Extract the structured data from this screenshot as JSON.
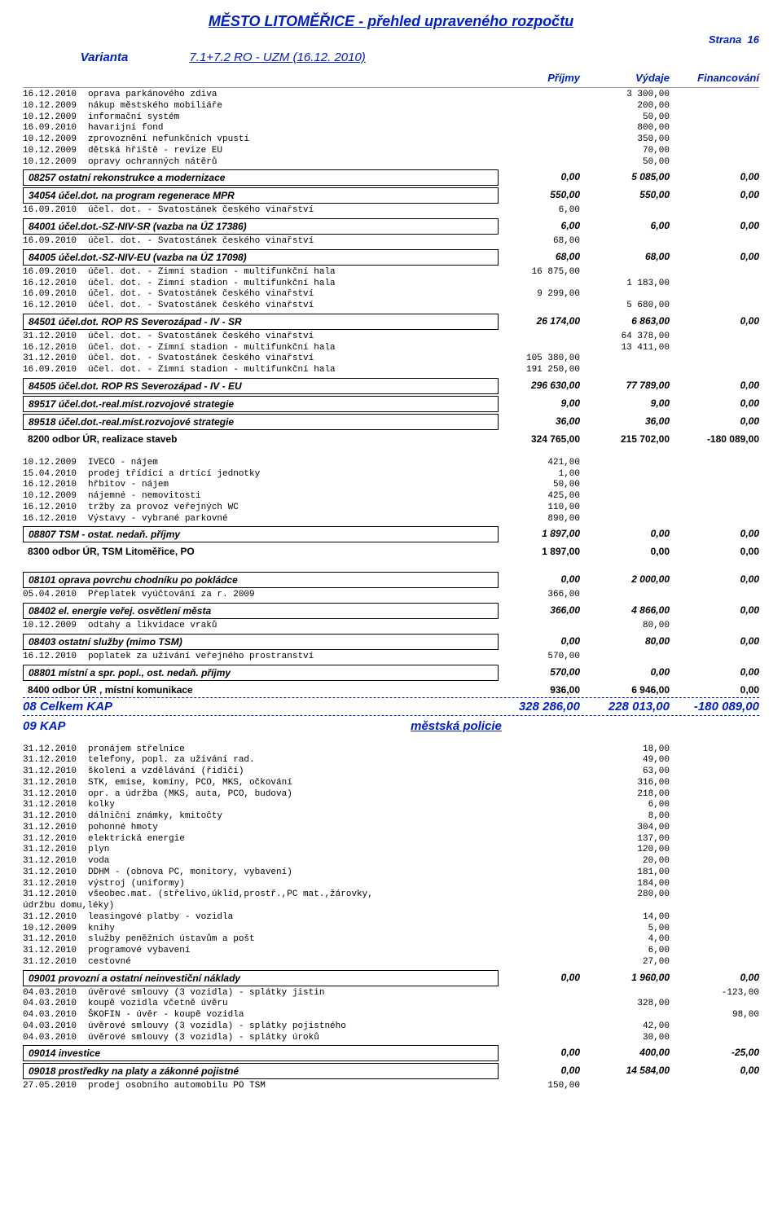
{
  "title": "MĚSTO LITOMĚŘICE - přehled upraveného rozpočtu",
  "strana_label": "Strana",
  "strana_num": "16",
  "varianta_label": "Varianta",
  "varianta_value": "7.1+7.2  RO - UZM (16.12. 2010)",
  "headers": {
    "p": "Příjmy",
    "v": "Výdaje",
    "f": "Financování"
  },
  "sections": [
    {
      "pre_lines": [
        {
          "d": "16.12.2010",
          "t": "oprava parkánového zdiva",
          "v": "3 300,00"
        },
        {
          "d": "10.12.2009",
          "t": "nákup městského mobiliáře",
          "v": "200,00"
        },
        {
          "d": "10.12.2009",
          "t": "informační systém",
          "v": "50,00"
        },
        {
          "d": "16.09.2010",
          "t": "havarijní fond",
          "v": "800,00"
        },
        {
          "d": "10.12.2009",
          "t": "zprovoznění nefunkčních vpustí",
          "v": "350,00"
        },
        {
          "d": "10.12.2009",
          "t": "dětská hřiště - revize EU",
          "v": "70,00"
        },
        {
          "d": "10.12.2009",
          "t": "opravy ochranných nátěrů",
          "v": "50,00"
        }
      ],
      "subs": [
        {
          "title": "08257  ostatní rekonstrukce a modernizace",
          "p": "0,00",
          "v": "5 085,00",
          "f": "0,00",
          "lines": []
        },
        {
          "title": "34054  účel.dot. na program regenerace MPR",
          "p": "550,00",
          "v": "550,00",
          "f": "0,00",
          "lines": [
            {
              "d": "16.09.2010",
              "t": "účel. dot. - Svatostánek českého vinařství",
              "p": "6,00"
            }
          ]
        },
        {
          "title": "84001  účel.dot.-SZ-NIV-SR (vazba na ÚZ 17386)",
          "p": "6,00",
          "v": "6,00",
          "f": "0,00",
          "lines": [
            {
              "d": "16.09.2010",
              "t": "účel. dot. - Svatostánek českého vinařství",
              "p": "68,00"
            }
          ]
        },
        {
          "title": "84005  účel.dot.-SZ-NIV-EU (vazba na ÚZ 17098)",
          "p": "68,00",
          "v": "68,00",
          "f": "0,00",
          "lines": [
            {
              "d": "16.09.2010",
              "t": "účel. dot. - Zimní stadion - multifunkční hala",
              "p": "16 875,00"
            },
            {
              "d": "16.12.2010",
              "t": "účel. dot. - Zimní stadion - multifunkční hala",
              "v": "1 183,00"
            },
            {
              "d": "16.09.2010",
              "t": "účel. dot. - Svatostánek českého vinařství",
              "p": "9 299,00"
            },
            {
              "d": "16.12.2010",
              "t": "účel. dot. - Svatostánek českého vinařství",
              "v": "5 680,00"
            }
          ]
        },
        {
          "title": "84501  účel.dot. ROP RS Severozápad - IV - SR",
          "p": "26 174,00",
          "v": "6 863,00",
          "f": "0,00",
          "lines": [
            {
              "d": "31.12.2010",
              "t": "účel. dot. - Svatostánek českého vinařství",
              "v": "64 378,00"
            },
            {
              "d": "16.12.2010",
              "t": "účel. dot. - Zimní stadion - multifunkční hala",
              "v": "13 411,00"
            },
            {
              "d": "31.12.2010",
              "t": "účel. dot. - Svatostánek českého vinařství",
              "p": "105 380,00"
            },
            {
              "d": "16.09.2010",
              "t": "účel. dot. - Zimní stadion - multifunkční hala",
              "p": "191 250,00"
            }
          ]
        },
        {
          "title": "84505  účel.dot. ROP  RS Severozápad - IV - EU",
          "p": "296 630,00",
          "v": "77 789,00",
          "f": "0,00",
          "lines": []
        },
        {
          "title": "89517  účel.dot.-real.míst.rozvojové strategie",
          "p": "9,00",
          "v": "9,00",
          "f": "0,00",
          "lines": []
        },
        {
          "title": "89518  účel.dot.-real.míst.rozvojové strategie",
          "p": "36,00",
          "v": "36,00",
          "f": "0,00",
          "lines": []
        }
      ],
      "total": {
        "label": "8200  odbor ÚR, realizace staveb",
        "p": "324 765,00",
        "v": "215 702,00",
        "f": "-180 089,00"
      }
    },
    {
      "pre_lines": [
        {
          "d": "10.12.2009",
          "t": "IVECO - nájem",
          "p": "421,00"
        },
        {
          "d": "15.04.2010",
          "t": "prodej třídící a drtící jednotky",
          "p": "1,00"
        },
        {
          "d": "16.12.2010",
          "t": "hřbitov - nájem",
          "p": "50,00"
        },
        {
          "d": "10.12.2009",
          "t": "nájemné - nemovitosti",
          "p": "425,00"
        },
        {
          "d": "16.12.2010",
          "t": "tržby za provoz veřejných WC",
          "p": "110,00"
        },
        {
          "d": "16.12.2010",
          "t": "Výstavy - vybrané parkovné",
          "p": "890,00"
        }
      ],
      "subs": [
        {
          "title": "08807  TSM - ostat. nedaň. příjmy",
          "p": "1 897,00",
          "v": "0,00",
          "f": "0,00",
          "lines": []
        }
      ],
      "total": {
        "label": "8300  odbor ÚR, TSM Litoměřice, PO",
        "p": "1 897,00",
        "v": "0,00",
        "f": "0,00"
      }
    },
    {
      "pre_lines": [],
      "subs": [
        {
          "title": "08101  oprava povrchu chodníku po pokládce",
          "p": "0,00",
          "v": "2 000,00",
          "f": "0,00",
          "lines": [
            {
              "d": "05.04.2010",
              "t": "Přeplatek vyúčtování za r. 2009",
              "p": "366,00"
            }
          ]
        },
        {
          "title": "08402  el. energie veřej. osvětlení města",
          "p": "366,00",
          "v": "4 866,00",
          "f": "0,00",
          "lines": [
            {
              "d": "10.12.2009",
              "t": "odtahy  a likvidace vraků",
              "v": "80,00"
            }
          ]
        },
        {
          "title": "08403  ostatní služby (mimo TSM)",
          "p": "0,00",
          "v": "80,00",
          "f": "0,00",
          "lines": [
            {
              "d": "16.12.2010",
              "t": "poplatek za užívání veřejného prostranství",
              "p": "570,00"
            }
          ]
        },
        {
          "title": "08801  místní a spr. popl., ost. nedaň. příjmy",
          "p": "570,00",
          "v": "0,00",
          "f": "0,00",
          "lines": []
        }
      ],
      "total": {
        "label": "8400  odbor ÚR , místní komunikace",
        "p": "936,00",
        "v": "6 946,00",
        "f": "0,00"
      }
    }
  ],
  "kap08": {
    "label": "08    Celkem KAP",
    "p": "328 286,00",
    "v": "228 013,00",
    "f": "-180 089,00"
  },
  "kap09_label": "09    KAP",
  "kap09_head": "městská policie",
  "sec09": {
    "pre_lines": [
      {
        "d": "31.12.2010",
        "t": "pronájem střelnice",
        "v": "18,00"
      },
      {
        "d": "31.12.2010",
        "t": "telefony, popl. za užívání rad.",
        "v": "49,00"
      },
      {
        "d": "31.12.2010",
        "t": "školení a vzdělávání (řidiči)",
        "v": "63,00"
      },
      {
        "d": "31.12.2010",
        "t": "STK, emise, komíny, PCO, MKS, očkování",
        "v": "316,00"
      },
      {
        "d": "31.12.2010",
        "t": "opr. a údržba (MKS, auta, PCO, budova)",
        "v": "218,00"
      },
      {
        "d": "31.12.2010",
        "t": "kolky",
        "v": "6,00"
      },
      {
        "d": "31.12.2010",
        "t": "dálniční známky, kmitočty",
        "v": "8,00"
      },
      {
        "d": "31.12.2010",
        "t": "pohonné hmoty",
        "v": "304,00"
      },
      {
        "d": "31.12.2010",
        "t": "elektrická energie",
        "v": "137,00"
      },
      {
        "d": "31.12.2010",
        "t": "plyn",
        "v": "120,00"
      },
      {
        "d": "31.12.2010",
        "t": "voda",
        "v": "20,00"
      },
      {
        "d": "31.12.2010",
        "t": "DDHM - (obnova PC, monitory, vybavení)",
        "v": "181,00"
      },
      {
        "d": "31.12.2010",
        "t": "výstroj (uniformy)",
        "v": "184,00"
      },
      {
        "d": "31.12.2010",
        "t": "všeobec.mat. (střelivo,úklid,prostř.,PC mat.,žárovky,",
        "v": "280,00"
      },
      {
        "d": "",
        "t": "údržbu domu,léky)"
      },
      {
        "d": "31.12.2010",
        "t": "leasingové platby - vozidla",
        "v": "14,00"
      },
      {
        "d": "10.12.2009",
        "t": "knihy",
        "v": "5,00"
      },
      {
        "d": "31.12.2010",
        "t": "služby peněžních ústavům a pošt",
        "v": "4,00"
      },
      {
        "d": "31.12.2010",
        "t": "programové vybavení",
        "v": "6,00"
      },
      {
        "d": "31.12.2010",
        "t": "cestovné",
        "v": "27,00"
      }
    ],
    "subs": [
      {
        "title": "09001  provozní a ostatní neinvestiční náklady",
        "p": "0,00",
        "v": "1 960,00",
        "f": "0,00",
        "lines": [
          {
            "d": "04.03.2010",
            "t": "úvěrové smlouvy (3 vozidla) - splátky jistin",
            "f": "-123,00"
          },
          {
            "d": "04.03.2010",
            "t": "koupě vozidla včetně úvěru",
            "v": "328,00"
          },
          {
            "d": "04.03.2010",
            "t": "ŠKOFIN - úvěr - koupě vozidla",
            "f": "98,00"
          },
          {
            "d": "04.03.2010",
            "t": "úvěrové smlouvy (3 vozidla) - splátky pojistného",
            "v": "42,00"
          },
          {
            "d": "04.03.2010",
            "t": "úvěrové smlouvy (3 vozidla) - splátky úroků",
            "v": "30,00"
          }
        ]
      },
      {
        "title": "09014  investice",
        "p": "0,00",
        "v": "400,00",
        "f": "-25,00",
        "lines": []
      },
      {
        "title": "09018  prostředky na platy a zákonné pojistné",
        "p": "0,00",
        "v": "14 584,00",
        "f": "0,00",
        "lines": [
          {
            "d": "27.05.2010",
            "t": "prodej osobního automobilu PO TSM",
            "p": "150,00"
          }
        ]
      }
    ]
  }
}
